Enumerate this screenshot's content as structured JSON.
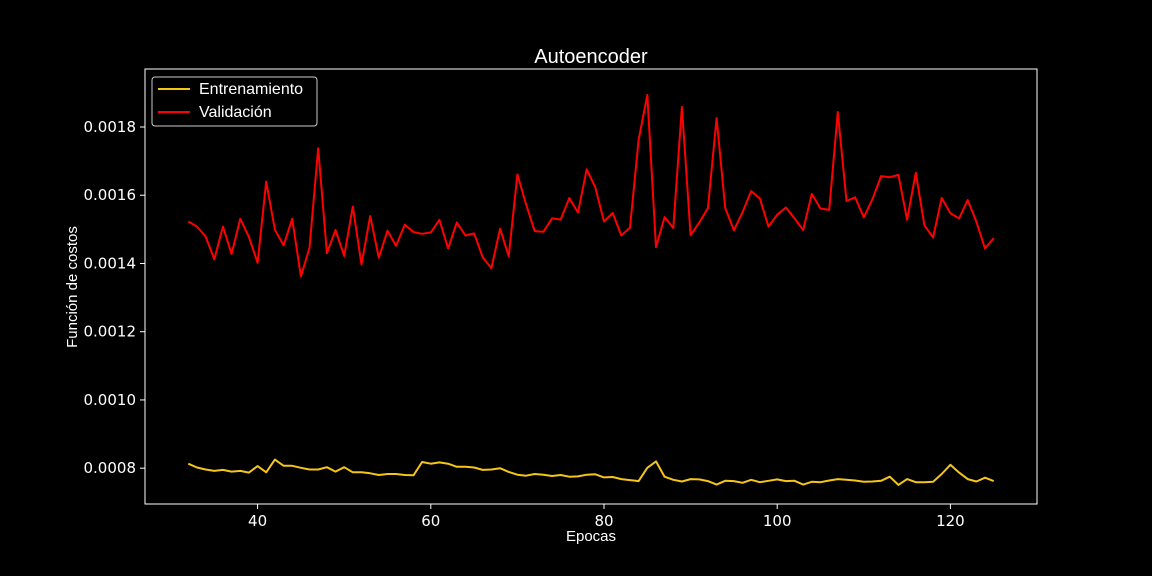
{
  "chart_data": {
    "type": "line",
    "title": "Autoencoder",
    "xlabel": "Epocas",
    "ylabel": "Función de costos",
    "xlim": [
      27,
      130
    ],
    "ylim": [
      0.000695,
      0.00197
    ],
    "x_ticks": [
      40,
      60,
      80,
      100,
      120
    ],
    "y_ticks": [
      0.0008,
      0.001,
      0.0012,
      0.0014,
      0.0016,
      0.0018
    ],
    "y_tick_labels": [
      "0.0008",
      "0.0010",
      "0.0012",
      "0.0014",
      "0.0016",
      "0.0018"
    ],
    "grid": false,
    "legend_position": "top-left",
    "x": [
      32,
      33,
      34,
      35,
      36,
      37,
      38,
      39,
      40,
      41,
      42,
      43,
      44,
      45,
      46,
      47,
      48,
      49,
      50,
      51,
      52,
      53,
      54,
      55,
      56,
      57,
      58,
      59,
      60,
      61,
      62,
      63,
      64,
      65,
      66,
      67,
      68,
      69,
      70,
      71,
      72,
      73,
      74,
      75,
      76,
      77,
      78,
      79,
      80,
      81,
      82,
      83,
      84,
      85,
      86,
      87,
      88,
      89,
      90,
      91,
      92,
      93,
      94,
      95,
      96,
      97,
      98,
      99,
      100,
      101,
      102,
      103,
      104,
      105,
      106,
      107,
      108,
      109,
      110,
      111,
      112,
      113,
      114,
      115,
      116,
      117,
      118,
      119,
      120,
      121,
      122,
      123,
      124,
      125
    ],
    "series": [
      {
        "name": "Entrenamiento",
        "color": "#f5c518",
        "values": [
          0.000813,
          0.000802,
          0.000796,
          0.000792,
          0.000795,
          0.00079,
          0.000792,
          0.000787,
          0.000806,
          0.000788,
          0.000825,
          0.000807,
          0.000807,
          0.000801,
          0.000796,
          0.000796,
          0.000803,
          0.00079,
          0.000803,
          0.000788,
          0.000788,
          0.000785,
          0.00078,
          0.000783,
          0.000783,
          0.00078,
          0.000779,
          0.000818,
          0.000813,
          0.000817,
          0.000813,
          0.000804,
          0.000804,
          0.000802,
          0.000795,
          0.000796,
          0.0008,
          0.000789,
          0.000781,
          0.000778,
          0.000783,
          0.000781,
          0.000777,
          0.00078,
          0.000775,
          0.000776,
          0.000781,
          0.000782,
          0.000773,
          0.000774,
          0.000768,
          0.000765,
          0.000762,
          0.000801,
          0.00082,
          0.000775,
          0.000766,
          0.000761,
          0.000768,
          0.000767,
          0.000762,
          0.000752,
          0.000763,
          0.000762,
          0.000757,
          0.000766,
          0.000759,
          0.000763,
          0.000767,
          0.000762,
          0.000763,
          0.000752,
          0.00076,
          0.000759,
          0.000764,
          0.000768,
          0.000766,
          0.000764,
          0.00076,
          0.000761,
          0.000763,
          0.000775,
          0.000751,
          0.000768,
          0.000759,
          0.000759,
          0.00076,
          0.000783,
          0.00081,
          0.000787,
          0.000768,
          0.000761,
          0.000772,
          0.000762
        ]
      },
      {
        "name": "Validación",
        "color": "#ff0000",
        "values": [
          0.001523,
          0.001508,
          0.001479,
          0.001412,
          0.001508,
          0.001428,
          0.001531,
          0.001478,
          0.001402,
          0.00164,
          0.001499,
          0.001453,
          0.001531,
          0.001362,
          0.001446,
          0.001738,
          0.00143,
          0.001498,
          0.001422,
          0.001567,
          0.001397,
          0.001539,
          0.001417,
          0.001496,
          0.001452,
          0.001514,
          0.001492,
          0.001487,
          0.001491,
          0.001528,
          0.001444,
          0.00152,
          0.001482,
          0.001488,
          0.001418,
          0.001386,
          0.001502,
          0.001421,
          0.001661,
          0.001574,
          0.001495,
          0.001493,
          0.001532,
          0.001529,
          0.001592,
          0.001549,
          0.001676,
          0.001623,
          0.001523,
          0.001548,
          0.001482,
          0.001505,
          0.001762,
          0.001894,
          0.001448,
          0.001536,
          0.001504,
          0.001859,
          0.001483,
          0.00152,
          0.001562,
          0.001826,
          0.001563,
          0.001497,
          0.001551,
          0.001612,
          0.00159,
          0.001508,
          0.001543,
          0.001564,
          0.001532,
          0.001498,
          0.001604,
          0.001561,
          0.001557,
          0.001844,
          0.001583,
          0.001594,
          0.001535,
          0.001589,
          0.001656,
          0.001653,
          0.00166,
          0.001528,
          0.001666,
          0.001512,
          0.001476,
          0.001592,
          0.001547,
          0.001532,
          0.001586,
          0.001522,
          0.001444,
          0.001474
        ]
      }
    ]
  }
}
